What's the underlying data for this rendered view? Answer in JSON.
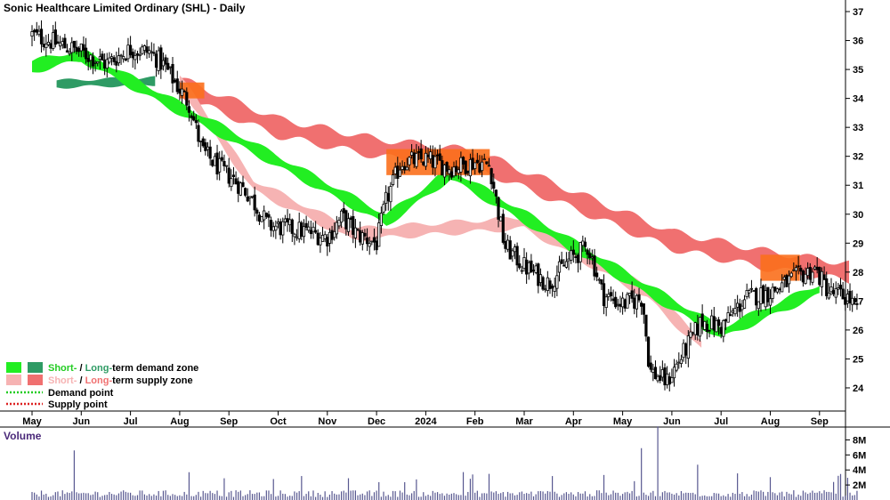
{
  "chart_data": {
    "type": "candlestick",
    "title": "Sonic Healthcare Limited Ordinary (SHL) - Daily",
    "price_axis": {
      "ylim": [
        23.2,
        37.4
      ],
      "ticks": [
        24,
        25,
        26,
        27,
        28,
        29,
        30,
        31,
        32,
        33,
        34,
        35,
        36,
        37
      ]
    },
    "month_labels": [
      "May",
      "Jun",
      "Jul",
      "Aug",
      "Sep",
      "Oct",
      "Nov",
      "Dec",
      "2024",
      "Feb",
      "Mar",
      "Apr",
      "May",
      "Jun",
      "Jul",
      "Aug",
      "Sep"
    ],
    "volume_panel": {
      "label": "Volume",
      "ylim": [
        0,
        9
      ],
      "ticks": [
        {
          "value": 2,
          "label": "2M"
        },
        {
          "value": 4,
          "label": "4M"
        },
        {
          "value": 6,
          "label": "6M"
        },
        {
          "value": 8,
          "label": "8M"
        }
      ],
      "spikes": [
        {
          "month_index": 0.84,
          "value": 6.6
        },
        {
          "month_index": 12.4,
          "value": 6.9
        },
        {
          "month_index": 12.7,
          "value": 8.6
        },
        {
          "month_index": 13.5,
          "value": 4.7
        },
        {
          "month_index": 3.2,
          "value": 3.7
        }
      ]
    },
    "price_path": [
      [
        0.0,
        36.2
      ],
      [
        0.5,
        35.9
      ],
      [
        1.0,
        35.6
      ],
      [
        1.5,
        35.2
      ],
      [
        2.0,
        35.7
      ],
      [
        2.4,
        35.6
      ],
      [
        2.7,
        35.1
      ],
      [
        3.0,
        34.3
      ],
      [
        3.2,
        33.8
      ],
      [
        3.45,
        32.2
      ],
      [
        3.8,
        31.6
      ],
      [
        4.1,
        31.2
      ],
      [
        4.4,
        30.7
      ],
      [
        4.8,
        29.6
      ],
      [
        5.2,
        29.5
      ],
      [
        5.6,
        29.4
      ],
      [
        6.0,
        29.2
      ],
      [
        6.3,
        29.9
      ],
      [
        6.6,
        29.3
      ],
      [
        7.0,
        29.0
      ],
      [
        7.2,
        30.5
      ],
      [
        7.5,
        31.8
      ],
      [
        8.0,
        31.9
      ],
      [
        8.5,
        31.6
      ],
      [
        9.0,
        31.8
      ],
      [
        9.3,
        31.7
      ],
      [
        9.6,
        28.9
      ],
      [
        10.0,
        28.2
      ],
      [
        10.5,
        27.6
      ],
      [
        10.9,
        28.4
      ],
      [
        11.3,
        28.9
      ],
      [
        11.6,
        27.2
      ],
      [
        12.0,
        26.9
      ],
      [
        12.4,
        27.1
      ],
      [
        12.55,
        24.6
      ],
      [
        12.9,
        24.2
      ],
      [
        13.3,
        25.4
      ],
      [
        13.6,
        26.3
      ],
      [
        14.0,
        26.1
      ],
      [
        14.5,
        27.1
      ],
      [
        15.0,
        27.3
      ],
      [
        15.5,
        27.8
      ],
      [
        15.9,
        28.1
      ],
      [
        16.2,
        27.3
      ],
      [
        16.6,
        27.1
      ],
      [
        16.8,
        26.5
      ]
    ],
    "zones": {
      "long_term_demand": [
        [
          0.5,
          34.5
        ],
        [
          2.5,
          34.6
        ]
      ],
      "long_term_supply": [
        [
          3.0,
          34.4
        ],
        [
          5.0,
          33.0
        ],
        [
          7.0,
          32.3
        ],
        [
          9.0,
          31.9
        ],
        [
          11.0,
          30.5
        ],
        [
          13.0,
          29.1
        ],
        [
          15.0,
          28.4
        ],
        [
          16.6,
          28.0
        ]
      ],
      "short_term_demand": [
        [
          0.0,
          35.1
        ],
        [
          1.0,
          35.5
        ],
        [
          7.2,
          29.8
        ],
        [
          8.5,
          31.4
        ],
        [
          14.0,
          25.9
        ],
        [
          16.0,
          27.4
        ]
      ],
      "short_term_supply": [
        [
          3.0,
          34.6
        ],
        [
          4.5,
          31.0
        ],
        [
          6.5,
          29.3
        ],
        [
          10.0,
          29.7
        ],
        [
          12.5,
          27.3
        ],
        [
          13.6,
          25.5
        ]
      ]
    },
    "legend": {
      "demand_zone": {
        "short": "Short-",
        "slash": " / ",
        "long": "Long-",
        "rest": "term demand zone"
      },
      "supply_zone": {
        "short": "Short-",
        "slash": " / ",
        "long": "Long-",
        "rest": "term supply zone"
      },
      "demand_point": "Demand point",
      "supply_point": "Supply point"
    },
    "colors": {
      "short_demand": "#22ee22",
      "long_demand": "#2e9b64",
      "short_supply": "#f6b3b3",
      "long_supply": "#f07070",
      "zone_orange": "#fb6f1c",
      "candle": "#000000",
      "volume": "#585890",
      "demand_point": "#22cc22",
      "supply_point": "#dd2222"
    }
  }
}
